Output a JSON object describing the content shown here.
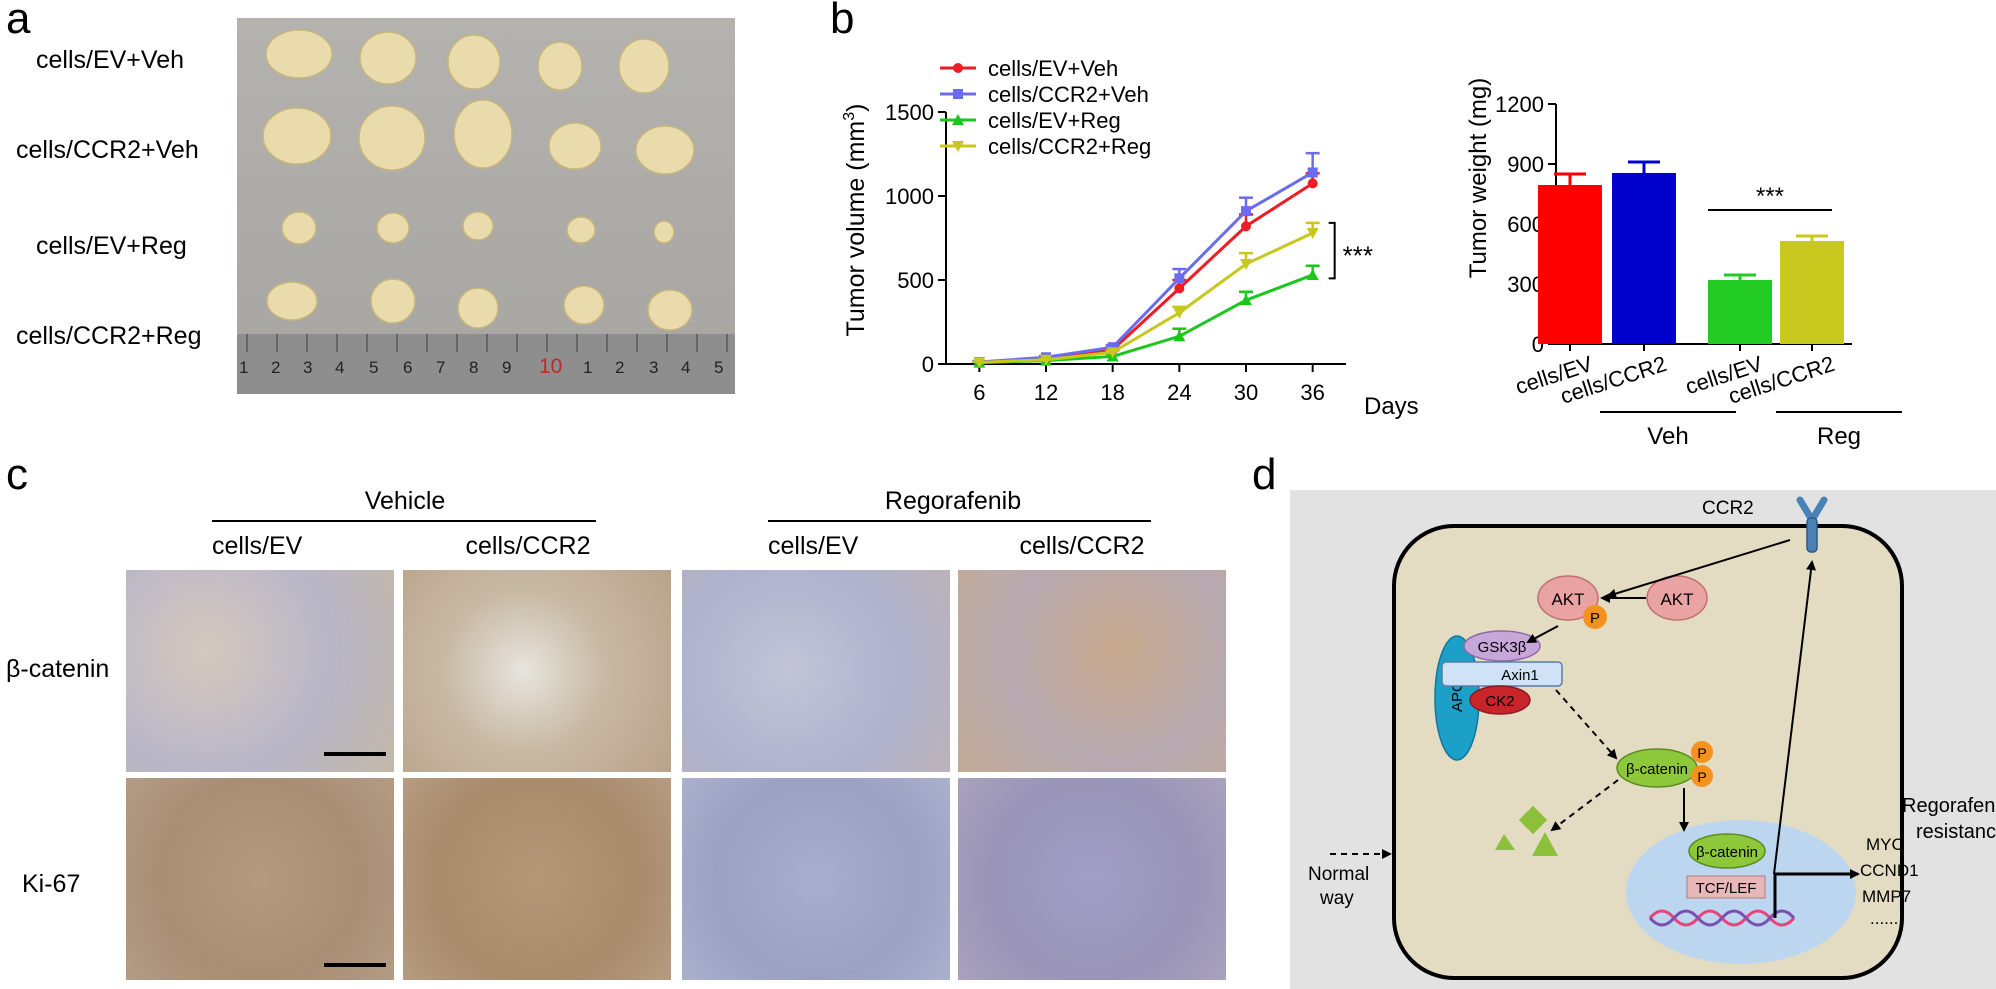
{
  "panels": {
    "a": "a",
    "b": "b",
    "c": "c",
    "d": "d"
  },
  "panel_a": {
    "row_labels": [
      "cells/EV+Veh",
      "cells/CCR2+Veh",
      "cells/EV+Reg",
      "cells/CCR2+Reg"
    ],
    "ruler_numbers": [
      "1",
      "2",
      "3",
      "4",
      "5",
      "6",
      "7",
      "8",
      "9",
      "10",
      "1",
      "2",
      "3",
      "4",
      "5"
    ]
  },
  "chart_data": [
    {
      "type": "line",
      "x": [
        6,
        12,
        18,
        24,
        30,
        36
      ],
      "xlabel": "Days",
      "ylabel": "Tumor volume (mm",
      "ylabel_sup": "3",
      "ylabel_close": ")",
      "ylim": [
        0,
        1500
      ],
      "yticks": [
        0,
        500,
        1000,
        1500
      ],
      "series": [
        {
          "name": "cells/EV+Veh",
          "color": "#ee1c25",
          "marker": "circle",
          "values": [
            10,
            30,
            85,
            450,
            820,
            1075
          ],
          "errors": [
            5,
            8,
            12,
            50,
            70,
            60
          ]
        },
        {
          "name": "cells/CCR2+Veh",
          "color": "#6b6bef",
          "marker": "square",
          "values": [
            12,
            40,
            100,
            510,
            910,
            1140
          ],
          "errors": [
            5,
            8,
            12,
            55,
            80,
            115
          ]
        },
        {
          "name": "cells/EV+Reg",
          "color": "#1dc61d",
          "marker": "triangle-up",
          "values": [
            8,
            20,
            45,
            165,
            380,
            530
          ],
          "errors": [
            4,
            5,
            8,
            45,
            50,
            55
          ]
        },
        {
          "name": "cells/CCR2+Reg",
          "color": "#c7c71d",
          "marker": "triangle-down",
          "values": [
            10,
            25,
            70,
            305,
            595,
            780
          ],
          "errors": [
            4,
            6,
            10,
            35,
            65,
            60
          ]
        }
      ],
      "annotation": "***",
      "legend_position": "top-left"
    },
    {
      "type": "bar",
      "categories": [
        "cells/EV",
        "cells/CCR2",
        "cells/EV",
        "cells/CCR2"
      ],
      "groups": [
        "Veh",
        "Reg"
      ],
      "values": [
        795,
        855,
        320,
        515
      ],
      "errors": [
        55,
        55,
        25,
        25
      ],
      "colors": [
        "#ff0000",
        "#0000cc",
        "#22cc22",
        "#c8c81e"
      ],
      "ylabel": "Tumor weight (mg)",
      "ylim": [
        0,
        1200
      ],
      "yticks": [
        0,
        300,
        600,
        900,
        1200
      ],
      "annotation": "***"
    }
  ],
  "panel_c": {
    "group_labels": [
      "Vehicle",
      "Regorafenib"
    ],
    "column_labels": [
      "cells/EV",
      "cells/CCR2",
      "cells/EV",
      "cells/CCR2"
    ],
    "row_labels": [
      "β-catenin",
      "Ki-67"
    ]
  },
  "panel_d": {
    "receptor": "CCR2",
    "akt": "AKT",
    "akt_p": "AKT",
    "phospho": "P",
    "apc": "APC",
    "gsk": "GSK3β",
    "axin": "Axin1",
    "ck2": "CK2",
    "bcat_p": "β-catenin",
    "bcat_n": "β-catenin",
    "tcf": "TCF/LEF",
    "targets": [
      "MYC",
      "CCND1",
      "MMP7",
      "......"
    ],
    "side_label_1": "Regorafenib",
    "side_label_2": "resistance",
    "normal_1": "Normal",
    "normal_2": "way"
  }
}
